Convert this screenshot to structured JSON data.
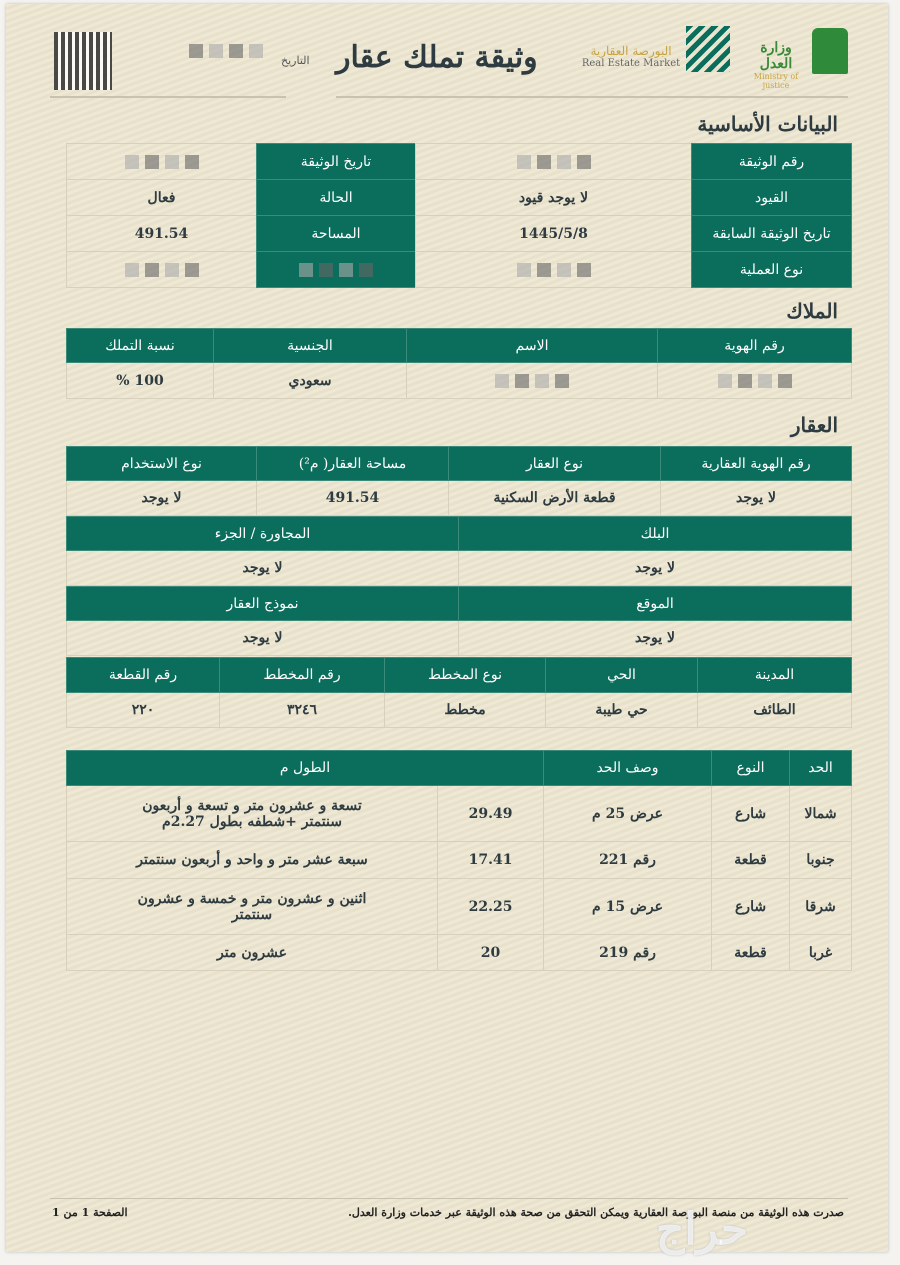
{
  "header": {
    "title": "وثيقة تملك عقار",
    "date_label": "التاريخ",
    "logo1_ar": "البورصة العقارية",
    "logo1_en": "Real Estate Market",
    "logo2_ar": "وزارة العدل",
    "logo2_en": "Ministry of justice"
  },
  "basic": {
    "title": "البيانات الأساسية",
    "rows": [
      {
        "l1": "رقم الوثيقة",
        "v1": "",
        "l2": "تاريخ الوثيقة",
        "v2": ""
      },
      {
        "l1": "القيود",
        "v1": "لا يوجد قيود",
        "l2": "الحالة",
        "v2": "فعال"
      },
      {
        "l1": "تاريخ الوثيقة السابقة",
        "v1": "1445/5/8",
        "l2": "المساحة",
        "v2": "491.54"
      },
      {
        "l1": "نوع العملية",
        "v1": "",
        "l2": "",
        "v2": ""
      }
    ]
  },
  "owners": {
    "title": "الملاك",
    "headers": [
      "رقم الهوية",
      "الاسم",
      "الجنسية",
      "نسبة التملك"
    ],
    "row": [
      "",
      "",
      "سعودي",
      "100 %"
    ]
  },
  "property": {
    "title": "العقار",
    "t1": {
      "headers": [
        "رقم الهوية العقارية",
        "نوع العقار",
        "مساحة العقار( م²)",
        "نوع الاستخدام"
      ],
      "row": [
        "لا يوجد",
        "قطعة الأرض السكنية",
        "491.54",
        "لا يوجد"
      ]
    },
    "t2": {
      "headers": [
        "البلك",
        "المجاورة / الجزء"
      ],
      "row": [
        "لا يوجد",
        "لا يوجد"
      ]
    },
    "t3": {
      "headers": [
        "الموقع",
        "نموذج العقار"
      ],
      "row": [
        "لا يوجد",
        "لا يوجد"
      ]
    },
    "t4": {
      "headers": [
        "المدينة",
        "الحي",
        "نوع المخطط",
        "رقم المخطط",
        "رقم القطعة"
      ],
      "row": [
        "الطائف",
        "حي طيبة",
        "مخطط",
        "٣٢٤٦",
        "٢٢٠"
      ]
    }
  },
  "bounds": {
    "headers": [
      "الحد",
      "النوع",
      "وصف الحد",
      "الطول م"
    ],
    "rows": [
      [
        "شمالا",
        "شارع",
        "عرض 25 م",
        "29.49",
        "تسعة و عشرون متر و تسعة و أربعون سنتمتر +شطفه بطول 2.27م"
      ],
      [
        "جنوبا",
        "قطعة",
        "رقم 221",
        "17.41",
        "سبعة عشر متر و واحد و أربعون سنتمتر"
      ],
      [
        "شرقا",
        "شارع",
        "عرض 15 م",
        "22.25",
        "اثنين و عشرون متر و خمسة و عشرون سنتمتر"
      ],
      [
        "غربا",
        "قطعة",
        "رقم 219",
        "20",
        "عشرون متر"
      ]
    ]
  },
  "footer": {
    "note": "صدرت هذه الوثيقة من منصة البورصة العقارية ويمكن التحقق من صحة هذه الوثيقة عبر خدمات وزارة العدل.",
    "page": "الصفحة 1 من 1",
    "watermark": "حراج"
  }
}
